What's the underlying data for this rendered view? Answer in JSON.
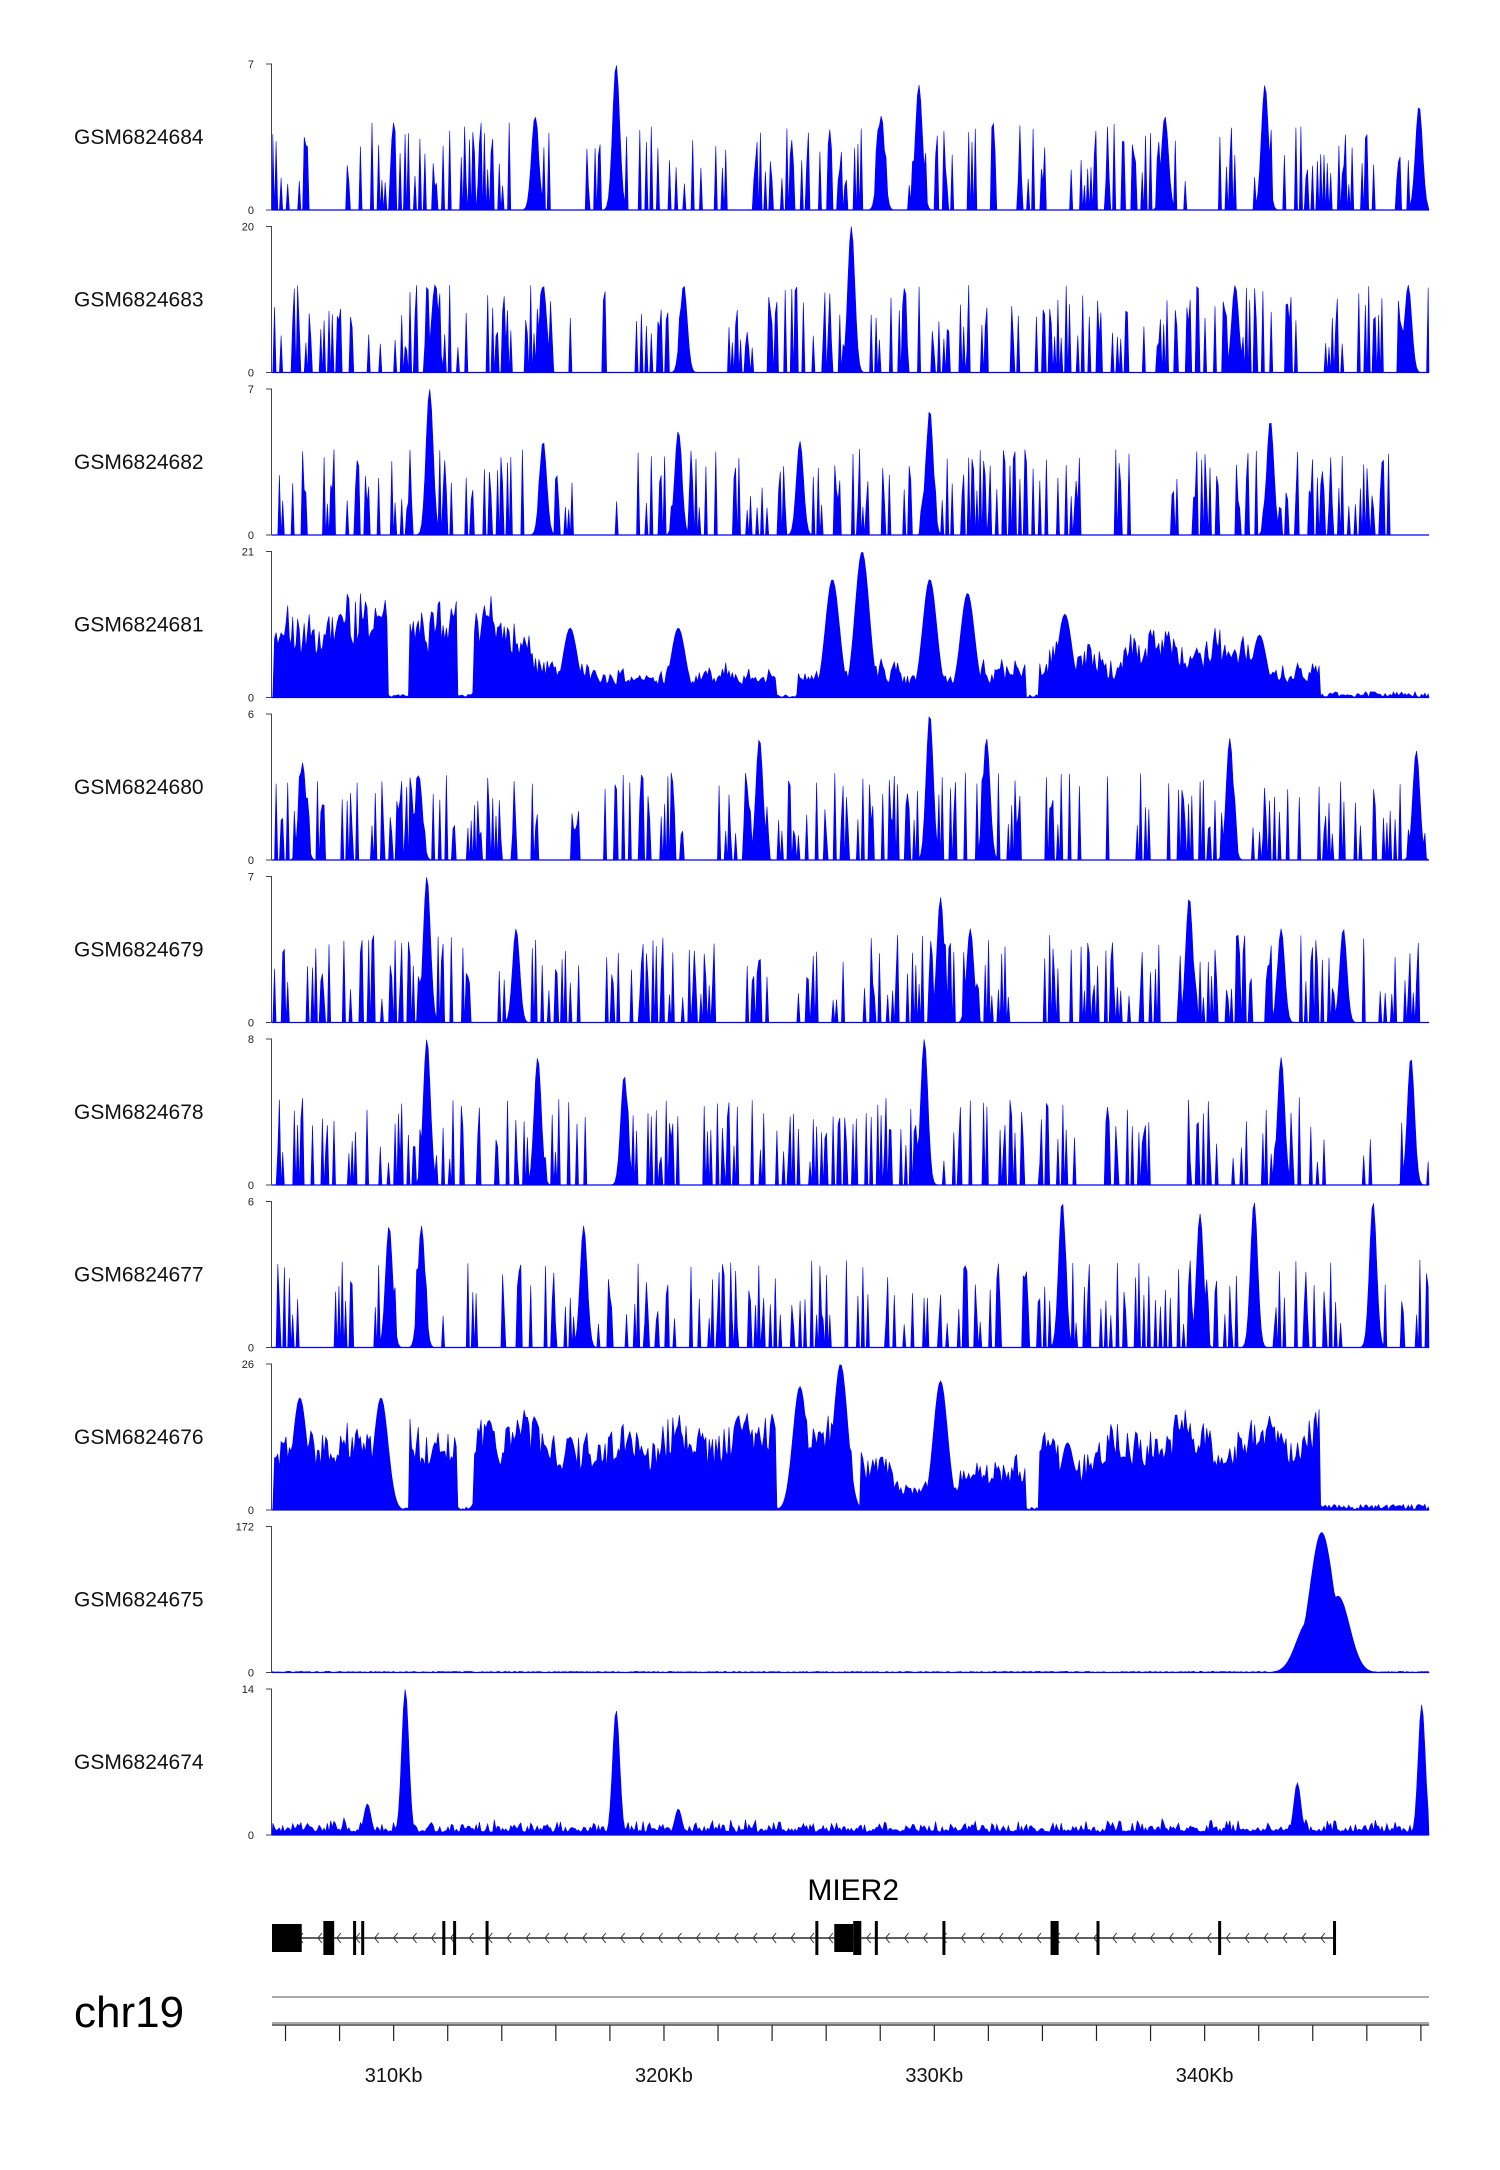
{
  "chart_data": {
    "type": "area",
    "region_kb": [
      305.5,
      348.3
    ],
    "series_color": "#0000ff",
    "tracks": [
      {
        "name": "GSM6824684",
        "ymax": 7,
        "ymin": 0,
        "profile": "sparse",
        "peaks": [
          [
            318.2,
            7
          ],
          [
            329.4,
            6
          ],
          [
            342.2,
            6
          ],
          [
            328.0,
            4.5
          ],
          [
            315.2,
            4.5
          ],
          [
            338.5,
            4.5
          ],
          [
            347.9,
            5
          ]
        ]
      },
      {
        "name": "GSM6824683",
        "ymax": 20,
        "ymin": 0,
        "profile": "sparse",
        "peaks": [
          [
            326.9,
            20
          ],
          [
            311.5,
            12
          ],
          [
            315.5,
            12
          ],
          [
            320.7,
            12
          ],
          [
            341.1,
            12
          ],
          [
            347.5,
            12
          ]
        ]
      },
      {
        "name": "GSM6824682",
        "ymax": 7,
        "ymin": 0,
        "profile": "sparse",
        "peaks": [
          [
            311.3,
            7
          ],
          [
            329.8,
            6
          ],
          [
            342.4,
            5.5
          ],
          [
            315.5,
            4.5
          ],
          [
            320.5,
            5
          ],
          [
            325.0,
            4.5
          ]
        ]
      },
      {
        "name": "GSM6824681",
        "ymax": 21,
        "ymin": 0,
        "profile": "broad",
        "peaks": [
          [
            327.3,
            21
          ],
          [
            329.8,
            17
          ],
          [
            331.2,
            15
          ],
          [
            326.2,
            17
          ],
          [
            308.0,
            12
          ],
          [
            313.5,
            10
          ],
          [
            316.5,
            10
          ],
          [
            320.5,
            10
          ],
          [
            334.8,
            12
          ],
          [
            342.0,
            9
          ]
        ]
      },
      {
        "name": "GSM6824680",
        "ymax": 6,
        "ymin": 0,
        "profile": "sparse",
        "peaks": [
          [
            329.8,
            6
          ],
          [
            331.9,
            5
          ],
          [
            323.5,
            5
          ],
          [
            340.9,
            5
          ],
          [
            347.8,
            4.5
          ],
          [
            306.6,
            4
          ],
          [
            310.9,
            3.5
          ]
        ]
      },
      {
        "name": "GSM6824679",
        "ymax": 7,
        "ymin": 0,
        "profile": "sparse",
        "peaks": [
          [
            311.2,
            7
          ],
          [
            330.2,
            6
          ],
          [
            339.4,
            6
          ],
          [
            331.3,
            4.5
          ],
          [
            342.8,
            4.5
          ],
          [
            345.1,
            4.5
          ],
          [
            314.5,
            4.5
          ]
        ]
      },
      {
        "name": "GSM6824678",
        "ymax": 8,
        "ymin": 0,
        "profile": "sparse",
        "peaks": [
          [
            311.2,
            8
          ],
          [
            329.6,
            8
          ],
          [
            315.3,
            7
          ],
          [
            342.8,
            7
          ],
          [
            347.6,
            7
          ],
          [
            318.5,
            6
          ]
        ]
      },
      {
        "name": "GSM6824677",
        "ymax": 6,
        "ymin": 0,
        "profile": "sparse",
        "peaks": [
          [
            334.7,
            6
          ],
          [
            341.8,
            6
          ],
          [
            346.2,
            6
          ],
          [
            339.8,
            5.5
          ],
          [
            311.0,
            5
          ],
          [
            309.8,
            5
          ],
          [
            317.0,
            5
          ]
        ]
      },
      {
        "name": "GSM6824676",
        "ymax": 26,
        "ymin": 0,
        "profile": "broad",
        "peaks": [
          [
            326.5,
            26
          ],
          [
            330.2,
            23
          ],
          [
            325.0,
            22
          ],
          [
            323.0,
            16
          ],
          [
            306.5,
            20
          ],
          [
            309.5,
            20
          ],
          [
            313.5,
            16
          ],
          [
            316.5,
            13
          ],
          [
            320.5,
            15
          ],
          [
            334.9,
            12
          ],
          [
            342.0,
            12
          ]
        ]
      },
      {
        "name": "GSM6824675",
        "ymax": 172,
        "ymin": 0,
        "profile": "single",
        "peaks": [
          [
            344.3,
            165
          ],
          [
            344.9,
            90
          ],
          [
            343.8,
            60
          ]
        ]
      },
      {
        "name": "GSM6824674",
        "ymax": 14,
        "ymin": 0,
        "profile": "spiky",
        "peaks": [
          [
            310.4,
            14
          ],
          [
            318.2,
            12
          ],
          [
            348.0,
            12.5
          ],
          [
            343.4,
            5
          ],
          [
            309.0,
            3
          ],
          [
            320.5,
            2.5
          ]
        ]
      }
    ],
    "gene": {
      "name": "MIER2",
      "strand": "-",
      "start_kb": 305.5,
      "end_kb": 344.8,
      "exons_kb": [
        [
          305.5,
          306.6
        ],
        [
          307.4,
          307.8
        ],
        [
          308.5,
          308.6
        ],
        [
          308.8,
          308.9
        ],
        [
          311.8,
          311.9
        ],
        [
          312.2,
          312.3
        ],
        [
          313.4,
          313.5
        ],
        [
          325.6,
          325.7
        ],
        [
          326.3,
          327.0
        ],
        [
          327.0,
          327.3
        ],
        [
          327.8,
          327.9
        ],
        [
          330.3,
          330.4
        ],
        [
          334.3,
          334.6
        ],
        [
          336.0,
          336.1
        ],
        [
          340.5,
          340.6
        ],
        [
          344.75,
          344.8
        ]
      ]
    },
    "chromosome": "chr19",
    "x_ticks_kb": [
      306,
      308,
      310,
      312,
      314,
      316,
      318,
      320,
      322,
      324,
      326,
      328,
      330,
      332,
      334,
      336,
      338,
      340,
      342,
      344,
      346,
      348
    ],
    "x_tick_labels": [
      {
        "kb": 310,
        "label": "310Kb"
      },
      {
        "kb": 320,
        "label": "320Kb"
      },
      {
        "kb": 330,
        "label": "330Kb"
      },
      {
        "kb": 340,
        "label": "340Kb"
      }
    ]
  }
}
